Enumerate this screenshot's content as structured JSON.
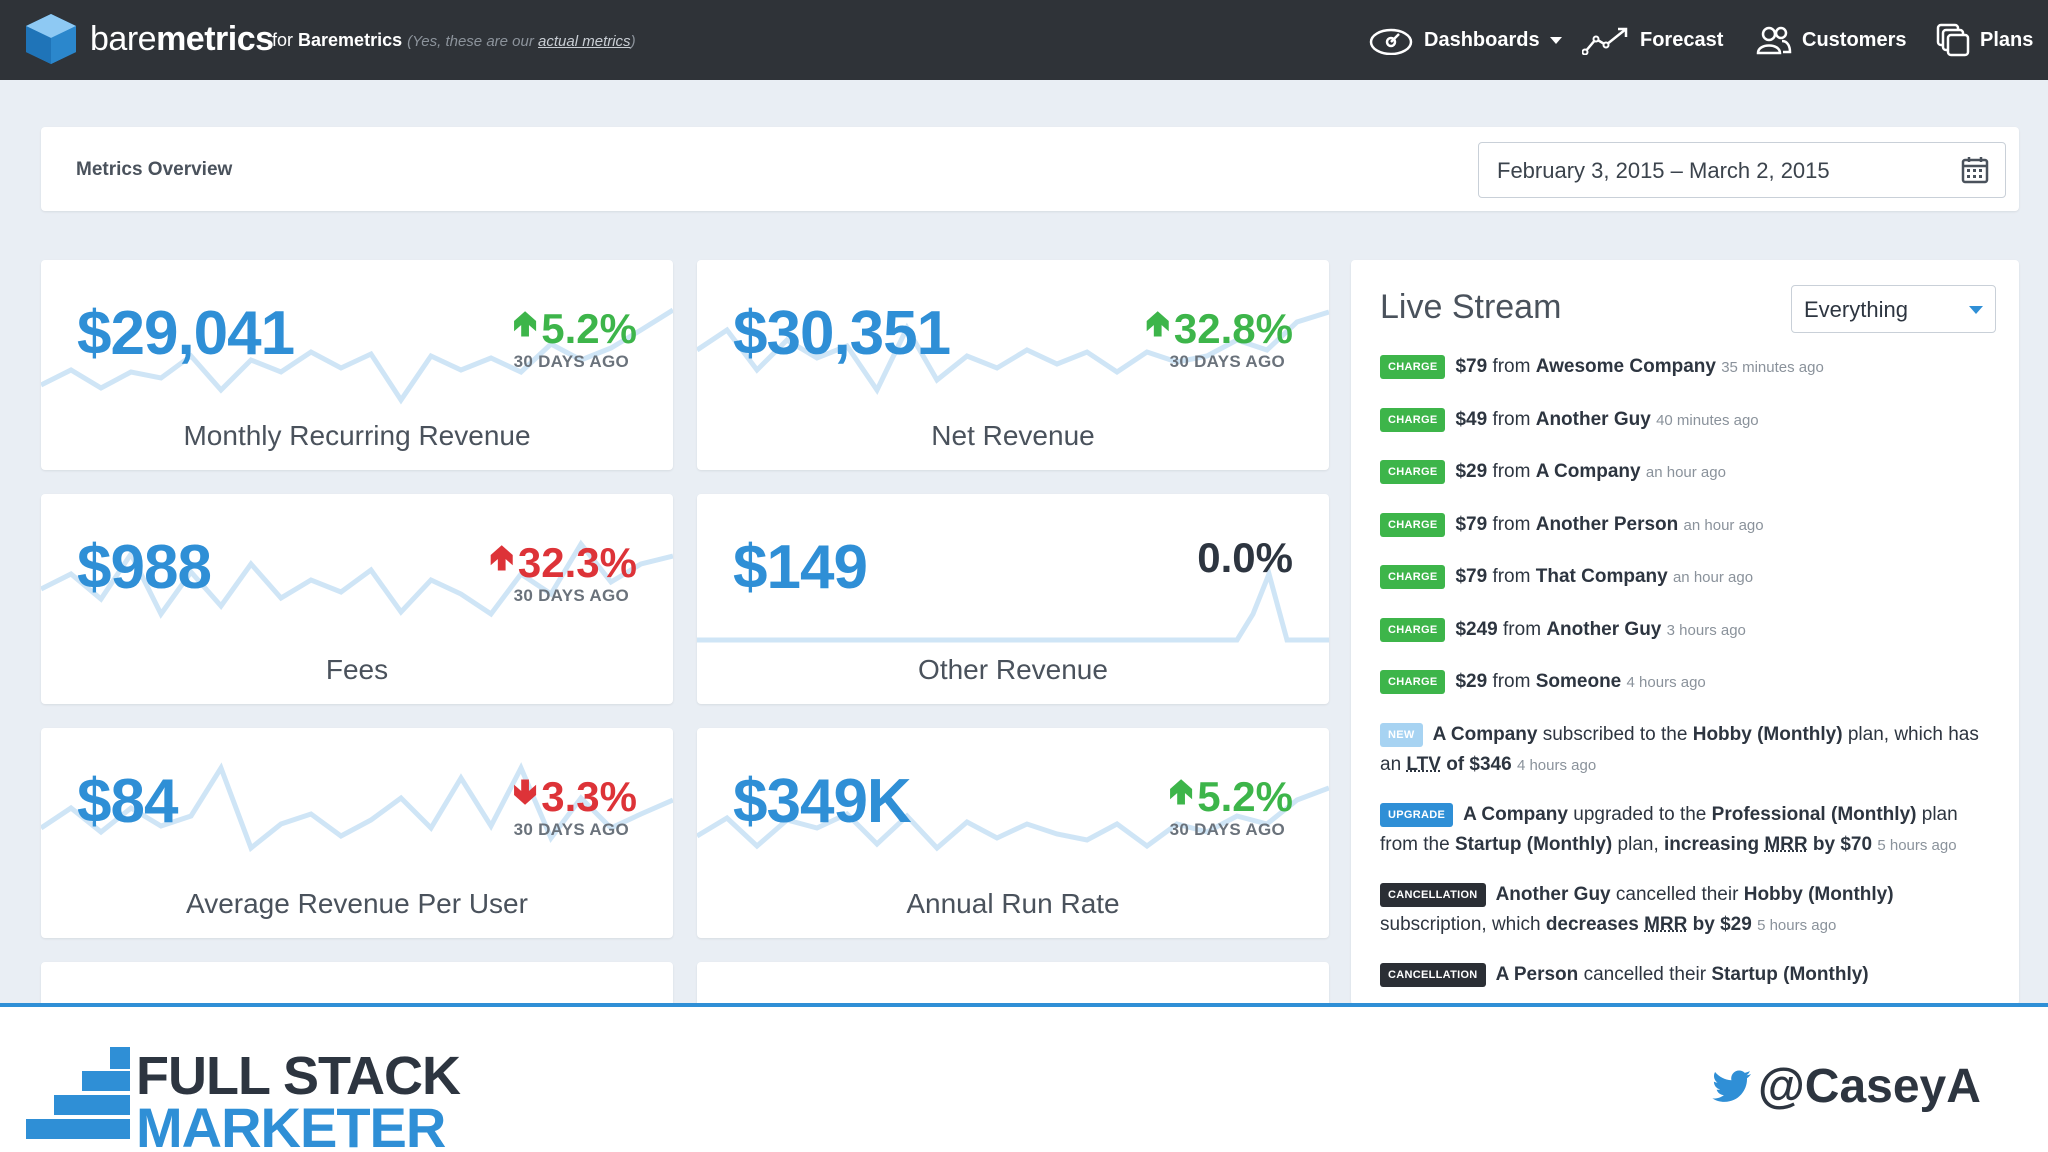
{
  "nav": {
    "brand_light": "bare",
    "brand_bold": "metrics",
    "for_text": "for",
    "for_company": "Baremetrics",
    "note_prefix": "(Yes, these are our",
    "note_link": "actual metrics",
    "note_suffix": ")",
    "items": [
      {
        "label": "Dashboards",
        "icon": "dashboard-gauge-icon"
      },
      {
        "label": "Forecast",
        "icon": "trend-line-icon"
      },
      {
        "label": "Customers",
        "icon": "users-icon"
      },
      {
        "label": "Plans",
        "icon": "plans-stack-icon"
      }
    ]
  },
  "header": {
    "title": "Metrics Overview",
    "date_range": "February  3, 2015 – March  2, 2015"
  },
  "metrics": [
    {
      "value": "$29,041",
      "change": "5.2%",
      "direction": "up",
      "ago": "30 DAYS AGO",
      "label": "Monthly Recurring Revenue"
    },
    {
      "value": "$30,351",
      "change": "32.8%",
      "direction": "up",
      "ago": "30 DAYS AGO",
      "label": "Net Revenue"
    },
    {
      "value": "$988",
      "change": "32.3%",
      "direction": "up-red",
      "ago": "30 DAYS AGO",
      "label": "Fees"
    },
    {
      "value": "$149",
      "change": "0.0%",
      "direction": "flat",
      "ago": "",
      "label": "Other Revenue"
    },
    {
      "value": "$84",
      "change": "3.3%",
      "direction": "down",
      "ago": "30 DAYS AGO",
      "label": "Average Revenue Per User"
    },
    {
      "value": "$349K",
      "change": "5.2%",
      "direction": "up",
      "ago": "30 DAYS AGO",
      "label": "Annual Run Rate"
    }
  ],
  "stream": {
    "title": "Live Stream",
    "filter": "Everything",
    "charges": [
      {
        "badge": "CHARGE",
        "amount": "$79",
        "from": "from",
        "who": "Awesome Company",
        "time": "35 minutes ago"
      },
      {
        "badge": "CHARGE",
        "amount": "$49",
        "from": "from",
        "who": "Another Guy",
        "time": "40 minutes ago"
      },
      {
        "badge": "CHARGE",
        "amount": "$29",
        "from": "from",
        "who": "A Company",
        "time": "an hour ago"
      },
      {
        "badge": "CHARGE",
        "amount": "$79",
        "from": "from",
        "who": "Another Person",
        "time": "an hour ago"
      },
      {
        "badge": "CHARGE",
        "amount": "$79",
        "from": "from",
        "who": "That Company",
        "time": "an hour ago"
      },
      {
        "badge": "CHARGE",
        "amount": "$249",
        "from": "from",
        "who": "Another Guy",
        "time": "3 hours ago"
      },
      {
        "badge": "CHARGE",
        "amount": "$29",
        "from": "from",
        "who": "Someone",
        "time": "4 hours ago"
      }
    ],
    "new_event": {
      "badge": "NEW",
      "who": "A Company",
      "t1": "subscribed to the",
      "plan": "Hobby (Monthly)",
      "t2": "plan, which has an",
      "ltv": "LTV",
      "of": "of $346",
      "time": "4 hours ago"
    },
    "upgrade_event": {
      "badge": "UPGRADE",
      "who": "A Company",
      "t1": "upgraded to the",
      "plan_to": "Professional (Monthly)",
      "t2": "plan from the",
      "plan_from": "Startup (Monthly)",
      "t3": "plan,",
      "increasing": "increasing",
      "mrr": "MRR",
      "by": "by $70",
      "time": "5 hours ago"
    },
    "cancel_events": [
      {
        "badge": "CANCELLATION",
        "who": "Another Guy",
        "t1": "cancelled their",
        "plan": "Hobby (Monthly)",
        "t2": "subscription, which",
        "decreases": "decreases",
        "mrr": "MRR",
        "by": "by $29",
        "time": "5 hours ago"
      },
      {
        "badge": "CANCELLATION",
        "who": "A Person",
        "t1": "cancelled their",
        "plan": "Startup (Monthly)"
      }
    ]
  },
  "banner": {
    "line1": "FULL STACK",
    "line2": "MARKETER",
    "handle": "@CaseyA"
  },
  "colors": {
    "accent": "#2f8fd6",
    "up": "#3db54a",
    "down": "#dd3338",
    "nav_bg": "#2f3338"
  }
}
